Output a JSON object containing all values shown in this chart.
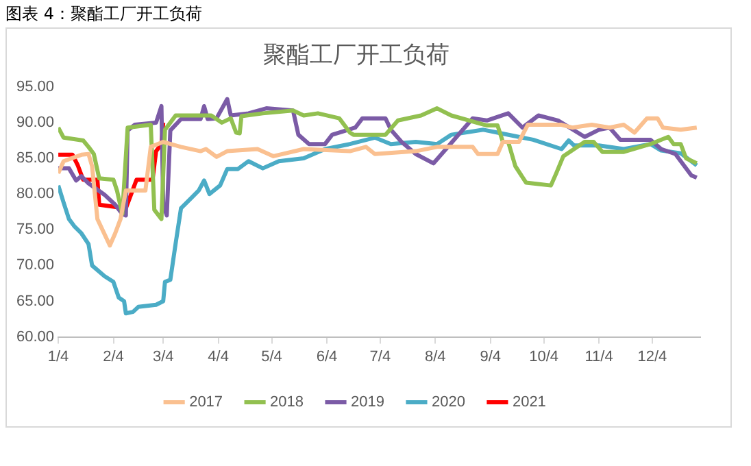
{
  "chart_data": {
    "type": "line",
    "title": "聚酯工厂开工负荷",
    "annotations": [
      "图表 4：聚酯工厂开工负荷"
    ],
    "xlim": [
      "--01-04",
      "--12-31"
    ],
    "xticks": [
      {
        "value": "--01-04",
        "label": "1/4"
      },
      {
        "value": "--02-04",
        "label": "2/4"
      },
      {
        "value": "--03-04",
        "label": "3/4"
      },
      {
        "value": "--04-04",
        "label": "4/4"
      },
      {
        "value": "--05-04",
        "label": "5/4"
      },
      {
        "value": "--06-04",
        "label": "6/4"
      },
      {
        "value": "--07-04",
        "label": "7/4"
      },
      {
        "value": "--08-04",
        "label": "8/4"
      },
      {
        "value": "--09-04",
        "label": "9/4"
      },
      {
        "value": "--10-04",
        "label": "10/4"
      },
      {
        "value": "--11-04",
        "label": "11/4"
      },
      {
        "value": "--12-04",
        "label": "12/4"
      }
    ],
    "ylim": [
      60,
      95
    ],
    "yticks": [
      {
        "value": 60,
        "label": "60.00"
      },
      {
        "value": 65,
        "label": "65.00"
      },
      {
        "value": 70,
        "label": "70.00"
      },
      {
        "value": 75,
        "label": "75.00"
      },
      {
        "value": 80,
        "label": "80.00"
      },
      {
        "value": 85,
        "label": "85.00"
      },
      {
        "value": 90,
        "label": "90.00"
      },
      {
        "value": 95,
        "label": "95.00"
      }
    ],
    "grid": false,
    "legend": "bottom",
    "marker": "none",
    "line_style": "solid",
    "series": [
      {
        "name": "2017",
        "color": "#fac090",
        "x": [
          "--01-04",
          "--01-07",
          "--01-17",
          "--01-21",
          "--01-23",
          "--01-26",
          "--02-02",
          "--02-05",
          "--02-08",
          "--02-11",
          "--02-22",
          "--02-25",
          "--03-04",
          "--03-14",
          "--03-25",
          "--03-28",
          "--04-03",
          "--04-09",
          "--04-26",
          "--05-05",
          "--05-22",
          "--06-17",
          "--06-26",
          "--07-01",
          "--07-24",
          "--08-05",
          "--08-25",
          "--08-28",
          "--09-08",
          "--09-11",
          "--09-20",
          "--09-25",
          "--10-14",
          "--10-20",
          "--10-31",
          "--11-10",
          "--11-18",
          "--11-24",
          "--12-01",
          "--12-07",
          "--12-10",
          "--12-20",
          "--12-29"
        ],
        "values": [
          82.9,
          84.6,
          85.5,
          85.6,
          83.9,
          76.5,
          72.8,
          74.5,
          76.5,
          80.5,
          80.5,
          86.6,
          87.3,
          86.6,
          86,
          86.3,
          85.2,
          86,
          86.3,
          85.3,
          86.3,
          86,
          86.6,
          85.6,
          86,
          86.6,
          86.6,
          85.6,
          85.6,
          87.3,
          87.3,
          89.7,
          89.7,
          89.3,
          89.7,
          89.3,
          89.7,
          88.6,
          90.6,
          90.6,
          89.3,
          89,
          89.3
        ]
      },
      {
        "name": "2018",
        "color": "#92c050",
        "x": [
          "--01-04",
          "--01-07",
          "--01-18",
          "--01-21",
          "--01-24",
          "--01-27",
          "--02-04",
          "--02-06",
          "--02-09",
          "--02-12",
          "--02-25",
          "--02-27",
          "--03-03",
          "--03-05",
          "--03-11",
          "--03-31",
          "--04-06",
          "--04-11",
          "--04-14",
          "--04-16",
          "--04-17",
          "--04-29",
          "--05-16",
          "--05-22",
          "--05-30",
          "--06-11",
          "--06-17",
          "--06-19",
          "--07-07",
          "--07-14",
          "--07-27",
          "--08-05",
          "--08-13",
          "--09-02",
          "--09-08",
          "--09-11",
          "--09-14",
          "--09-18",
          "--09-24",
          "--10-08",
          "--10-11",
          "--10-15",
          "--10-27",
          "--11-01",
          "--11-06",
          "--11-18",
          "--12-03",
          "--12-13",
          "--12-16",
          "--12-20",
          "--12-23",
          "--12-29"
        ],
        "values": [
          89.3,
          87.9,
          87.5,
          86.6,
          85.6,
          82.2,
          82,
          80.5,
          77.2,
          89.3,
          89.7,
          77.8,
          76.5,
          89,
          91,
          91,
          90,
          90.6,
          88.6,
          88.5,
          90.9,
          91.3,
          91.7,
          91,
          91.3,
          90.6,
          88.6,
          88.3,
          88.3,
          90.3,
          91,
          92,
          91,
          89.6,
          89.6,
          87.3,
          87.3,
          83.9,
          81.6,
          81.2,
          82.9,
          85.3,
          87.3,
          87.3,
          85.9,
          85.9,
          87,
          88,
          87,
          87,
          85,
          84.3
        ]
      },
      {
        "name": "2019",
        "color": "#7b5ba6",
        "x": [
          "--01-04",
          "--01-10",
          "--01-14",
          "--01-17",
          "--01-21",
          "--01-30",
          "--02-05",
          "--02-09",
          "--02-11",
          "--02-12",
          "--02-16",
          "--02-28",
          "--03-03",
          "--03-04",
          "--03-06",
          "--03-08",
          "--03-14",
          "--03-25",
          "--03-27",
          "--03-29",
          "--04-03",
          "--04-09",
          "--04-11",
          "--04-21",
          "--05-01",
          "--05-16",
          "--05-19",
          "--05-25",
          "--06-03",
          "--06-07",
          "--06-20",
          "--06-24",
          "--07-07",
          "--07-10",
          "--07-16",
          "--07-24",
          "--08-03",
          "--08-10",
          "--08-25",
          "--09-02",
          "--09-14",
          "--09-22",
          "--10-01",
          "--10-12",
          "--10-27",
          "--11-04",
          "--11-10",
          "--11-16",
          "--12-03",
          "--12-09",
          "--12-17",
          "--12-26",
          "--12-29"
        ],
        "values": [
          83.6,
          83.6,
          81.9,
          82.5,
          81.5,
          79.9,
          78.5,
          77.2,
          77,
          88.9,
          89.7,
          90,
          92.3,
          78.5,
          77,
          88.9,
          90.5,
          90.5,
          92.3,
          90.5,
          90.6,
          93.3,
          91,
          91.3,
          92,
          91.7,
          88.3,
          87,
          87,
          88.3,
          89.3,
          90.6,
          90.6,
          89,
          87.3,
          85.6,
          84.3,
          86.3,
          90.6,
          90.3,
          91.3,
          89.3,
          91,
          90.3,
          88,
          89,
          89.3,
          87.6,
          87.6,
          86.3,
          85.6,
          82.6,
          82.3
        ]
      },
      {
        "name": "2020",
        "color": "#4bacc6",
        "x": [
          "--01-04",
          "--01-07",
          "--01-10",
          "--01-13",
          "--01-17",
          "--01-21",
          "--01-23",
          "--01-30",
          "--02-04",
          "--02-07",
          "--02-10",
          "--02-11",
          "--02-15",
          "--02-18",
          "--02-28",
          "--03-04",
          "--03-05",
          "--03-08",
          "--03-11",
          "--03-14",
          "--03-20",
          "--03-24",
          "--03-27",
          "--03-30",
          "--04-05",
          "--04-09",
          "--04-15",
          "--04-21",
          "--04-29",
          "--05-08",
          "--05-22",
          "--06-03",
          "--06-17",
          "--07-01",
          "--07-10",
          "--07-24",
          "--08-05",
          "--08-13",
          "--08-31",
          "--09-08",
          "--09-28",
          "--10-14",
          "--10-18",
          "--10-21",
          "--11-04",
          "--11-18",
          "--12-03",
          "--12-09",
          "--12-20",
          "--12-29"
        ],
        "values": [
          81.2,
          78.8,
          76.5,
          75.5,
          74.5,
          73,
          70,
          68.5,
          67.7,
          65.5,
          65,
          63.3,
          63.5,
          64.2,
          64.5,
          65,
          67.7,
          68,
          73.1,
          78,
          79.5,
          80.5,
          81.9,
          80,
          81.2,
          83.5,
          83.5,
          84.6,
          83.6,
          84.6,
          85,
          86.3,
          87,
          87.9,
          87,
          87.3,
          87,
          88.3,
          89,
          88.6,
          87.6,
          86.3,
          87.5,
          86.8,
          86.8,
          86.3,
          87,
          86.1,
          85.7,
          84
        ]
      },
      {
        "name": "2021",
        "color": "#ff0000",
        "x": [
          "--01-04",
          "--01-12",
          "--01-15",
          "--01-18",
          "--01-26",
          "--01-27",
          "--02-11",
          "--02-14",
          "--02-17",
          "--02-26",
          "--02-28",
          "--03-03",
          "--03-04"
        ],
        "values": [
          85.5,
          85.5,
          84,
          82,
          82,
          78.5,
          78,
          80,
          82,
          82,
          86,
          87,
          90
        ]
      }
    ]
  }
}
